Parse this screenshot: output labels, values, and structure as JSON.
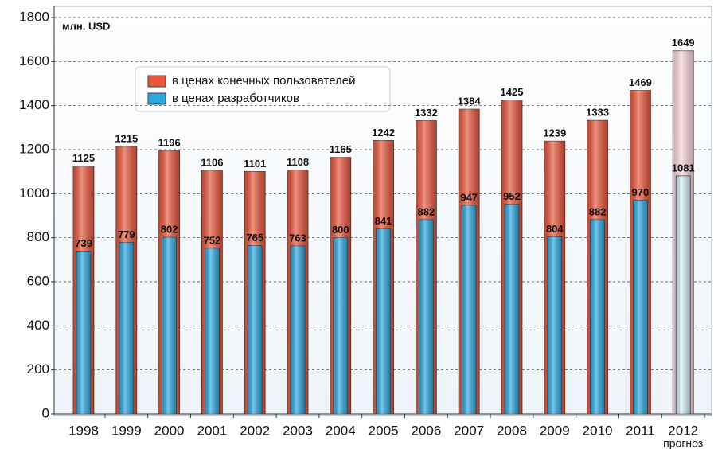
{
  "chart_data": {
    "type": "bar",
    "unit_label": "млн. USD",
    "annotation": "прогноз",
    "categories": [
      "1998",
      "1999",
      "2000",
      "2001",
      "2002",
      "2003",
      "2004",
      "2005",
      "2006",
      "2007",
      "2008",
      "2009",
      "2010",
      "2011",
      "2012"
    ],
    "series": [
      {
        "name": "в ценах конечных пользователей",
        "color": "#e8553a",
        "forecast_color": "#f9d6dc",
        "values": [
          1125,
          1215,
          1196,
          1106,
          1101,
          1108,
          1165,
          1242,
          1332,
          1384,
          1425,
          1239,
          1333,
          1469,
          1649
        ]
      },
      {
        "name": "в ценах разработчиков",
        "color": "#2ba8e0",
        "forecast_color": "#d4eef8",
        "values": [
          739,
          779,
          802,
          752,
          765,
          763,
          800,
          841,
          882,
          947,
          952,
          804,
          882,
          970,
          1081
        ]
      }
    ],
    "ylim": [
      0,
      1800
    ],
    "yticks": [
      0,
      200,
      400,
      600,
      800,
      1000,
      1200,
      1400,
      1600,
      1800
    ],
    "grid": true
  }
}
